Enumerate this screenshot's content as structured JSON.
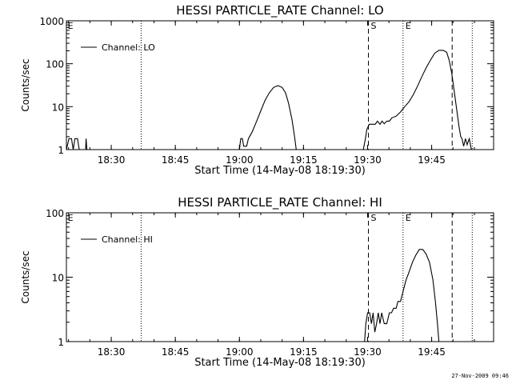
{
  "footer": {
    "stamp": "27-Nov-2009 09:46"
  },
  "chart_data": [
    {
      "type": "line",
      "title": "HESSI PARTICLE_RATE Channel: LO",
      "xlabel": "Start Time (14-May-08 18:19:30)",
      "ylabel": "Counts/sec",
      "yscale": "log",
      "ylim": [
        1,
        1000
      ],
      "xlim_minutes_from_start": [
        0,
        100
      ],
      "xticks": [
        {
          "t": 10.5,
          "label": "18:30"
        },
        {
          "t": 25.5,
          "label": "18:45"
        },
        {
          "t": 40.5,
          "label": "19:00"
        },
        {
          "t": 55.5,
          "label": "19:15"
        },
        {
          "t": 70.5,
          "label": "19:30"
        },
        {
          "t": 85.5,
          "label": "19:45"
        }
      ],
      "yticks": [
        {
          "v": 1,
          "label": "1"
        },
        {
          "v": 10,
          "label": "10"
        },
        {
          "v": 100,
          "label": "100"
        },
        {
          "v": 1000,
          "label": "1000"
        }
      ],
      "grid": false,
      "legend": {
        "position": "top-left",
        "entries": [
          "Channel: LO"
        ]
      },
      "markers": [
        {
          "t": 17.5,
          "style": "dotted",
          "label": ""
        },
        {
          "t": 70.7,
          "style": "dashed",
          "label": "S"
        },
        {
          "t": 78.8,
          "style": "dotted",
          "label": "E"
        },
        {
          "t": 90.3,
          "style": "dashed",
          "label": ""
        },
        {
          "t": 95.0,
          "style": "dotted",
          "label": ""
        }
      ],
      "corner_labels": [
        {
          "t": 0.3,
          "label": "E"
        }
      ],
      "series": [
        {
          "name": "Channel: LO",
          "segments": [
            [
              [
                0,
                1
              ],
              [
                0.6,
                1.8
              ],
              [
                1.2,
                1.8
              ],
              [
                1.6,
                1
              ],
              [
                2.0,
                1.8
              ],
              [
                2.6,
                1.8
              ],
              [
                3.0,
                1
              ]
            ],
            [
              [
                4.5,
                1
              ],
              [
                4.6,
                1.8
              ],
              [
                4.8,
                1
              ]
            ],
            [
              [
                40.5,
                1
              ],
              [
                40.8,
                1.8
              ],
              [
                41.2,
                1.8
              ],
              [
                41.5,
                1.2
              ],
              [
                42.2,
                1.2
              ],
              [
                42.6,
                1.8
              ],
              [
                43.5,
                2.6
              ],
              [
                44.5,
                4.5
              ],
              [
                45.5,
                8
              ],
              [
                46.5,
                14
              ],
              [
                47.5,
                21
              ],
              [
                48.5,
                28
              ],
              [
                49.5,
                31
              ],
              [
                50.5,
                28
              ],
              [
                51.3,
                21
              ],
              [
                52.0,
                12
              ],
              [
                52.8,
                5
              ],
              [
                53.4,
                2
              ],
              [
                53.8,
                1
              ]
            ],
            [
              [
                69.5,
                1
              ],
              [
                70.0,
                1.8
              ],
              [
                70.3,
                2.9
              ],
              [
                70.9,
                3.9
              ],
              [
                72.3,
                3.9
              ],
              [
                72.8,
                4.6
              ],
              [
                73.4,
                3.9
              ],
              [
                73.9,
                4.6
              ],
              [
                74.4,
                4.0
              ],
              [
                75.0,
                4.6
              ],
              [
                75.6,
                4.6
              ],
              [
                76.2,
                5.5
              ],
              [
                77.2,
                6.0
              ],
              [
                78.2,
                7.5
              ],
              [
                79.2,
                10
              ],
              [
                80.2,
                13
              ],
              [
                81.2,
                19
              ],
              [
                82.2,
                30
              ],
              [
                83.2,
                50
              ],
              [
                84.2,
                80
              ],
              [
                85.2,
                120
              ],
              [
                86.2,
                175
              ],
              [
                87.2,
                205
              ],
              [
                88.2,
                205
              ],
              [
                89.0,
                185
              ],
              [
                89.6,
                120
              ],
              [
                90.2,
                60
              ],
              [
                90.8,
                22
              ],
              [
                91.4,
                8
              ],
              [
                91.9,
                3.5
              ],
              [
                92.3,
                2
              ],
              [
                92.6,
                1.8
              ],
              [
                93.0,
                1.2
              ],
              [
                93.4,
                1.8
              ],
              [
                93.8,
                1.3
              ],
              [
                94.3,
                1.8
              ],
              [
                94.8,
                1
              ]
            ]
          ]
        }
      ]
    },
    {
      "type": "line",
      "title": "HESSI PARTICLE_RATE Channel: HI",
      "xlabel": "Start Time (14-May-08 18:19:30)",
      "ylabel": "Counts/sec",
      "yscale": "log",
      "ylim": [
        1,
        100
      ],
      "xlim_minutes_from_start": [
        0,
        100
      ],
      "xticks": [
        {
          "t": 10.5,
          "label": "18:30"
        },
        {
          "t": 25.5,
          "label": "18:45"
        },
        {
          "t": 40.5,
          "label": "19:00"
        },
        {
          "t": 55.5,
          "label": "19:15"
        },
        {
          "t": 70.5,
          "label": "19:30"
        },
        {
          "t": 85.5,
          "label": "19:45"
        }
      ],
      "yticks": [
        {
          "v": 1,
          "label": "1"
        },
        {
          "v": 10,
          "label": "10"
        },
        {
          "v": 100,
          "label": "100"
        }
      ],
      "grid": false,
      "legend": {
        "position": "top-left",
        "entries": [
          "Channel: HI"
        ]
      },
      "markers": [
        {
          "t": 17.5,
          "style": "dotted",
          "label": ""
        },
        {
          "t": 70.7,
          "style": "dashed",
          "label": "S"
        },
        {
          "t": 78.8,
          "style": "dotted",
          "label": "E"
        },
        {
          "t": 90.3,
          "style": "dashed",
          "label": ""
        },
        {
          "t": 95.0,
          "style": "dotted",
          "label": ""
        }
      ],
      "corner_labels": [
        {
          "t": 0.3,
          "label": "E"
        }
      ],
      "series": [
        {
          "name": "Channel: HI",
          "segments": [
            [
              [
                69.8,
                1
              ],
              [
                70.1,
                1.9
              ],
              [
                70.5,
                2.8
              ],
              [
                71.0,
                2.8
              ],
              [
                71.4,
                1.9
              ],
              [
                71.8,
                2.8
              ],
              [
                72.2,
                1.4
              ],
              [
                72.6,
                1.9
              ],
              [
                73.0,
                2.8
              ],
              [
                73.4,
                1.9
              ],
              [
                73.8,
                2.8
              ],
              [
                74.4,
                1.9
              ],
              [
                75.0,
                1.9
              ],
              [
                75.6,
                2.8
              ],
              [
                76.1,
                2.8
              ],
              [
                76.6,
                3.3
              ],
              [
                77.2,
                3.3
              ],
              [
                77.6,
                4.2
              ],
              [
                78.2,
                4.2
              ],
              [
                78.8,
                6
              ],
              [
                79.5,
                9
              ],
              [
                80.2,
                12
              ],
              [
                81.0,
                17
              ],
              [
                81.8,
                22
              ],
              [
                82.6,
                27
              ],
              [
                83.4,
                27
              ],
              [
                84.2,
                23
              ],
              [
                85.0,
                17
              ],
              [
                85.8,
                9
              ],
              [
                86.4,
                4
              ],
              [
                86.9,
                1.8
              ],
              [
                87.2,
                1
              ]
            ]
          ]
        }
      ]
    }
  ]
}
